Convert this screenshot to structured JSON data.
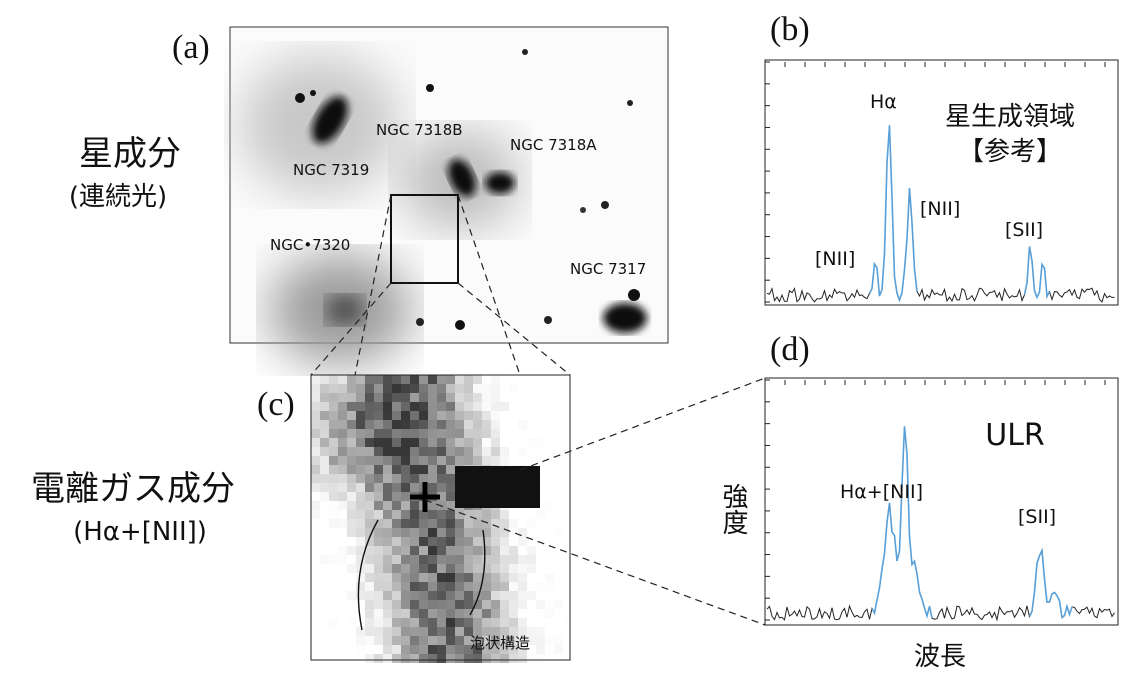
{
  "left_labels": {
    "stellar": "星成分",
    "stellar_sub": "(連続光)",
    "gas": "電離ガス成分",
    "gas_sub": "(Hα+[NII])"
  },
  "panel_a": {
    "label": "(a)",
    "objects": [
      "NGC 7318B",
      "NGC 7319",
      "NGC 7318A",
      "NGC•7320",
      "NGC 7317"
    ]
  },
  "panel_b": {
    "label": "(b)",
    "title": "星生成領域",
    "subtitle": "【参考】",
    "lines": [
      "Hα",
      "[NII]",
      "[NII]",
      "[SII]"
    ]
  },
  "panel_c": {
    "label": "(c)",
    "annotation": "泡状構造"
  },
  "panel_d": {
    "label": "(d)",
    "title": "ULR",
    "lines": [
      "Hα+[NII]",
      "[SII]"
    ],
    "y_label": "強度",
    "x_label": "波長"
  }
}
